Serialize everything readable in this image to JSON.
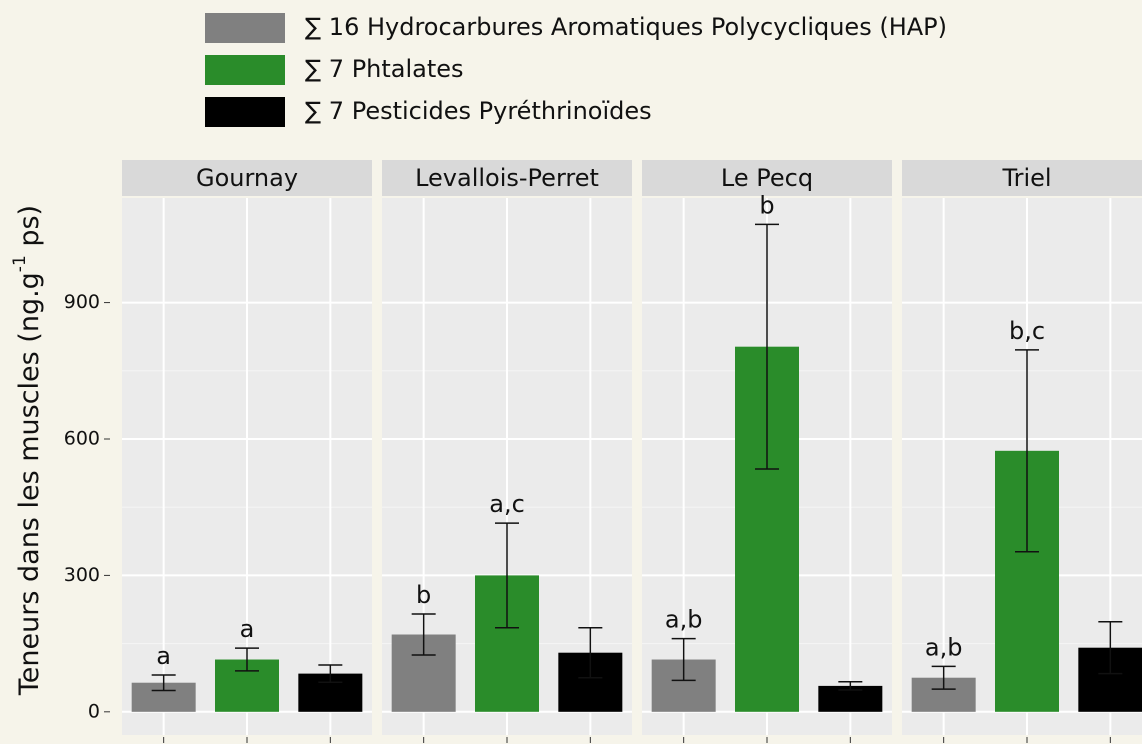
{
  "chart_data": {
    "type": "bar",
    "facets": [
      "Gournay",
      "Levallois-Perret",
      "Le Pecq",
      "Triel"
    ],
    "y_label": [
      "Teneurs dans les muscles (ng.g",
      "-1",
      " ps)"
    ],
    "ylim": [
      -51,
      1130
    ],
    "yticks": [
      0,
      300,
      600,
      900
    ],
    "grid": true,
    "series": [
      {
        "name": "∑ 16 Hydrocarbures Aromatiques  Polycycliques (HAP)",
        "color": "#808080",
        "values": [
          64,
          170,
          115,
          75
        ],
        "errors": [
          17,
          45,
          46,
          25
        ],
        "letters": [
          "a",
          "b",
          "a,b",
          "a,b"
        ]
      },
      {
        "name": "∑ 7 Phtalates",
        "color": "#2a8c2a",
        "values": [
          115,
          300,
          803,
          574
        ],
        "errors": [
          25,
          115,
          269,
          222
        ],
        "letters": [
          "a",
          "a,c",
          "b",
          "b,c"
        ]
      },
      {
        "name": "∑ 7 Pesticides Pyréthrinoïdes",
        "color": "#000000",
        "values": [
          84,
          130,
          57,
          141
        ],
        "errors": [
          19,
          55,
          9,
          57
        ]
      }
    ]
  }
}
